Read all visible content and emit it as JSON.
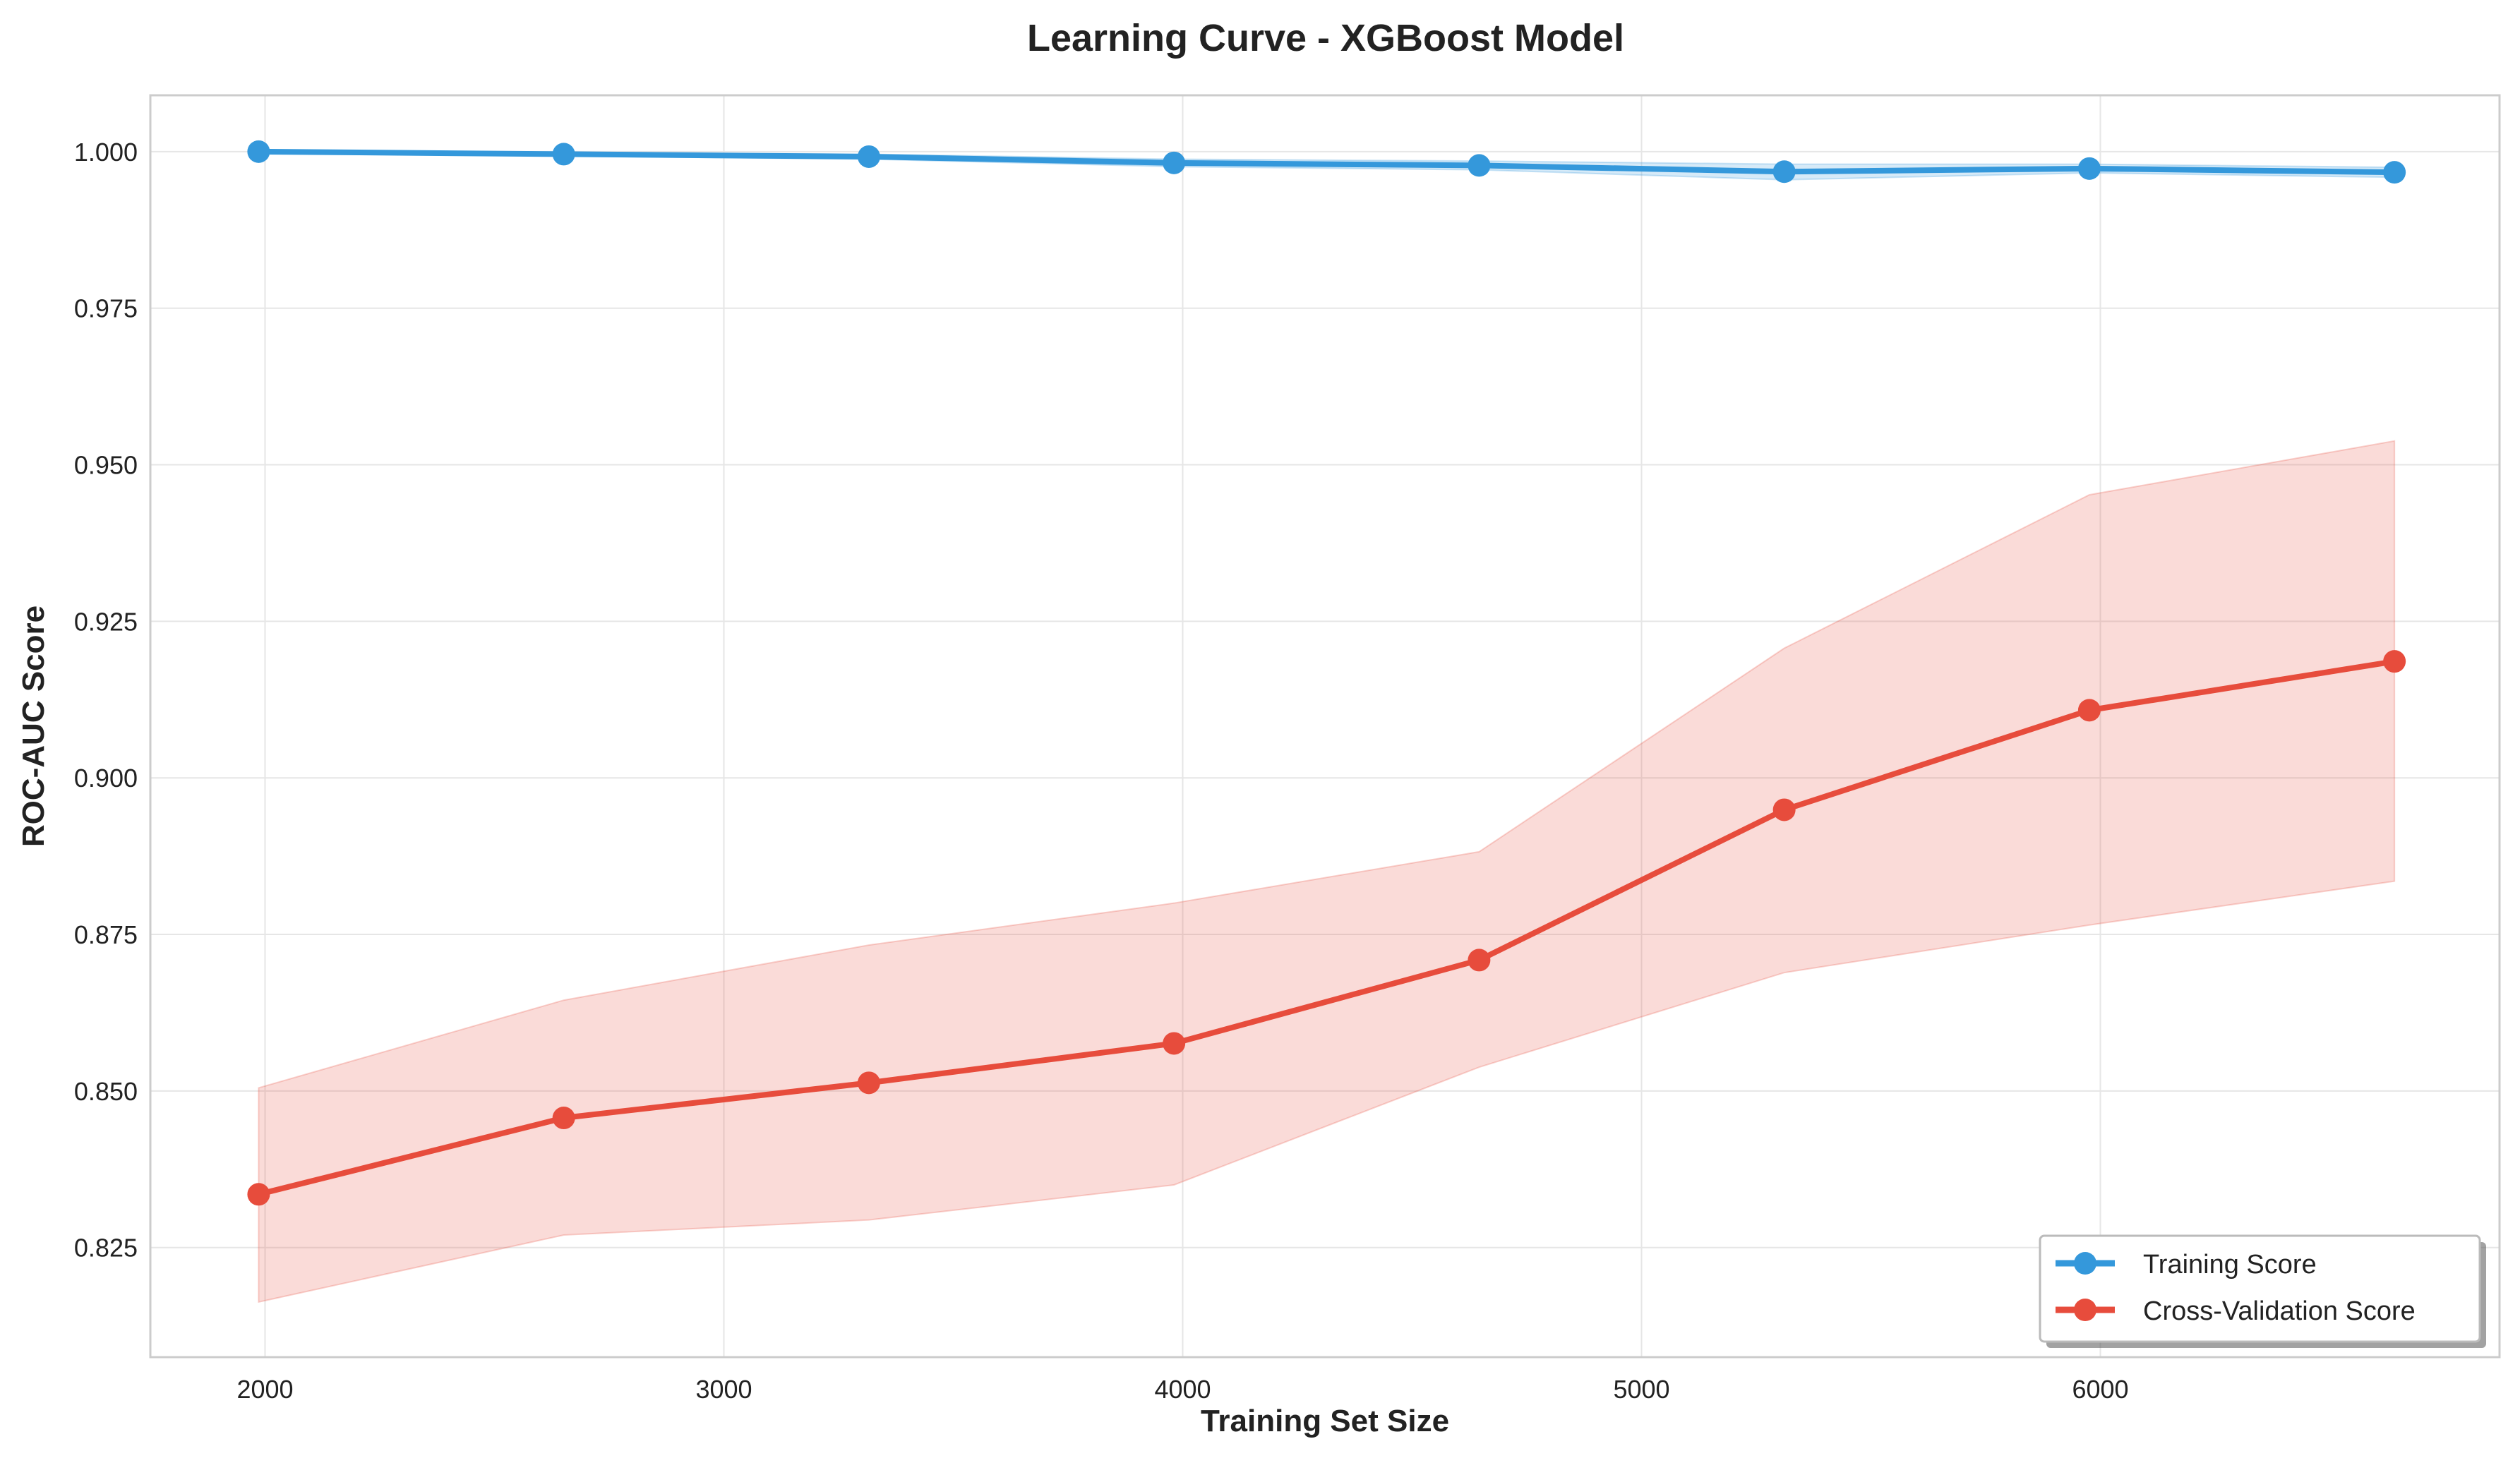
{
  "chart_data": {
    "type": "line",
    "title": "Learning Curve - XGBoost Model",
    "xlabel": "Training Set Size",
    "ylabel": "ROC-AUC Score",
    "xlim": [
      1750,
      6870
    ],
    "ylim": [
      0.8075,
      1.009
    ],
    "xticks": [
      2000,
      3000,
      4000,
      5000,
      6000
    ],
    "xtick_labels": [
      "2000",
      "3000",
      "4000",
      "5000",
      "6000"
    ],
    "yticks": [
      0.825,
      0.85,
      0.875,
      0.9,
      0.925,
      0.95,
      0.975,
      1.0
    ],
    "ytick_labels": [
      "0.825",
      "0.850",
      "0.875",
      "0.900",
      "0.925",
      "0.950",
      "0.975",
      "1.000"
    ],
    "grid": true,
    "legend_position": "bottom-right",
    "series": [
      {
        "name": "Training Score",
        "color": "#3498db",
        "x": [
          1986,
          2651,
          3316,
          3981,
          4646,
          5311,
          5976,
          6641
        ],
        "y": [
          1.0,
          0.9996,
          0.9992,
          0.9982,
          0.9978,
          0.9968,
          0.9973,
          0.9967
        ],
        "band_upper": [
          1.0,
          0.9999,
          0.9996,
          0.9988,
          0.9985,
          0.998,
          0.998,
          0.9975
        ],
        "band_lower": [
          0.9999,
          0.9993,
          0.9988,
          0.9976,
          0.9971,
          0.9955,
          0.9966,
          0.9959
        ]
      },
      {
        "name": "Cross-Validation Score",
        "color": "#e74c3c",
        "x": [
          1986,
          2651,
          3316,
          3981,
          4646,
          5311,
          5976,
          6641
        ],
        "y": [
          0.8335,
          0.8457,
          0.8513,
          0.8576,
          0.8709,
          0.8949,
          0.9108,
          0.9186
        ],
        "band_upper": [
          0.8505,
          0.8645,
          0.8733,
          0.88,
          0.8882,
          0.9207,
          0.9452,
          0.9538
        ],
        "band_lower": [
          0.8163,
          0.827,
          0.8294,
          0.835,
          0.8538,
          0.8689,
          0.8765,
          0.8835
        ]
      }
    ]
  }
}
